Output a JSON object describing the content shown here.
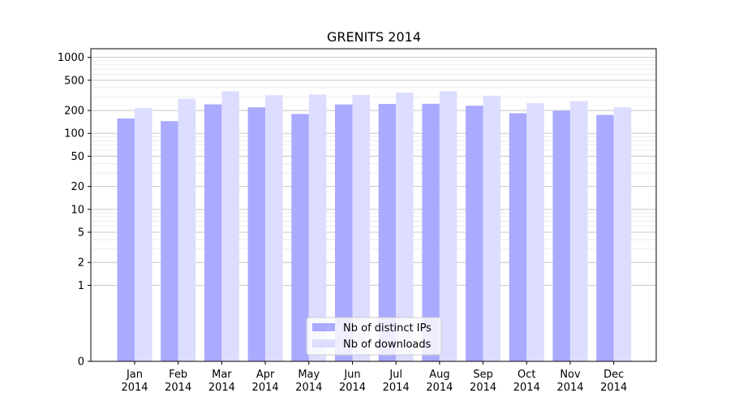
{
  "chart_data": {
    "type": "bar",
    "title": "GRENITS 2014",
    "xlabel": "",
    "ylabel": "",
    "yscale": "symlog",
    "ylim": [
      0,
      1300
    ],
    "yticks": [
      0,
      1,
      2,
      5,
      10,
      20,
      50,
      100,
      200,
      500,
      1000
    ],
    "ytick_labels": [
      "0",
      "1",
      "2",
      "5",
      "10",
      "20",
      "50",
      "100",
      "200",
      "500",
      "1000"
    ],
    "grid": true,
    "legend_position": "bottom-center",
    "categories": [
      "Jan\n2014",
      "Feb\n2014",
      "Mar\n2014",
      "Apr\n2014",
      "May\n2014",
      "Jun\n2014",
      "Jul\n2014",
      "Aug\n2014",
      "Sep\n2014",
      "Oct\n2014",
      "Nov\n2014",
      "Dec\n2014"
    ],
    "series": [
      {
        "name": "Nb of distinct IPs",
        "color": "#aaaaff",
        "values": [
          157,
          145,
          241,
          220,
          180,
          240,
          244,
          245,
          231,
          184,
          199,
          175
        ]
      },
      {
        "name": "Nb of downloads",
        "color": "#ddddff",
        "values": [
          216,
          286,
          358,
          318,
          325,
          321,
          344,
          358,
          313,
          251,
          265,
          220
        ]
      }
    ]
  }
}
